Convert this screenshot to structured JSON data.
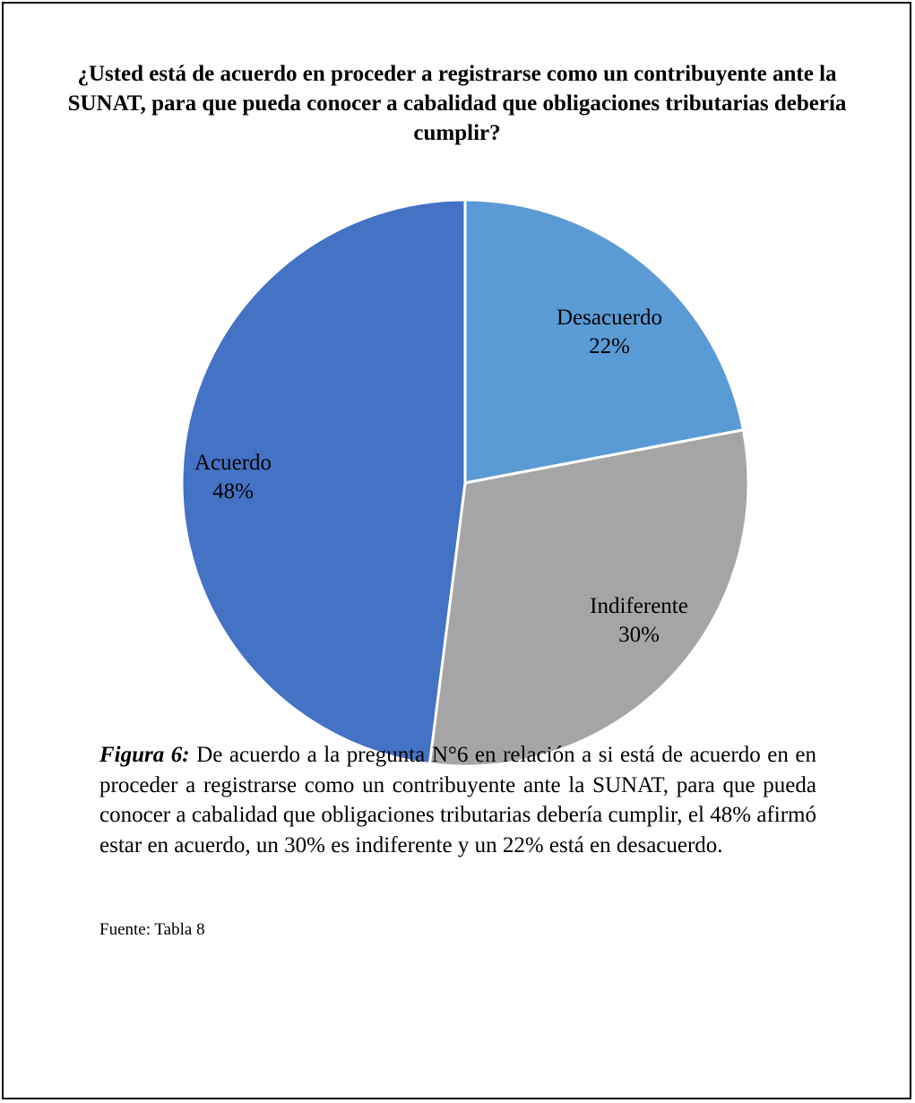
{
  "chart_data": {
    "type": "pie",
    "title": "¿Usted está de acuerdo en proceder a registrarse como un contribuyente ante la SUNAT, para que pueda conocer a cabalidad que obligaciones tributarias debería cumplir?",
    "slices": [
      {
        "label": "Desacuerdo",
        "value": 22,
        "value_label": "22%",
        "color": "#5b9bd5"
      },
      {
        "label": "Indiferente",
        "value": 30,
        "value_label": "30%",
        "color": "#a5a5a5"
      },
      {
        "label": "Acuerdo",
        "value": 48,
        "value_label": "48%",
        "color": "#4472c4"
      }
    ],
    "start": "12 o'clock",
    "direction": "clockwise"
  },
  "caption": {
    "label": "Figura 6:",
    "text": " De acuerdo a la pregunta N°6 en relación a si está de acuerdo en en proceder a registrarse como un contribuyente ante la SUNAT, para que pueda conocer a cabalidad que obligaciones tributarias debería cumplir, el 48% afirmó estar en acuerdo, un 30% es indiferente y un 22% está en desacuerdo."
  },
  "source": "Fuente: Tabla 8"
}
